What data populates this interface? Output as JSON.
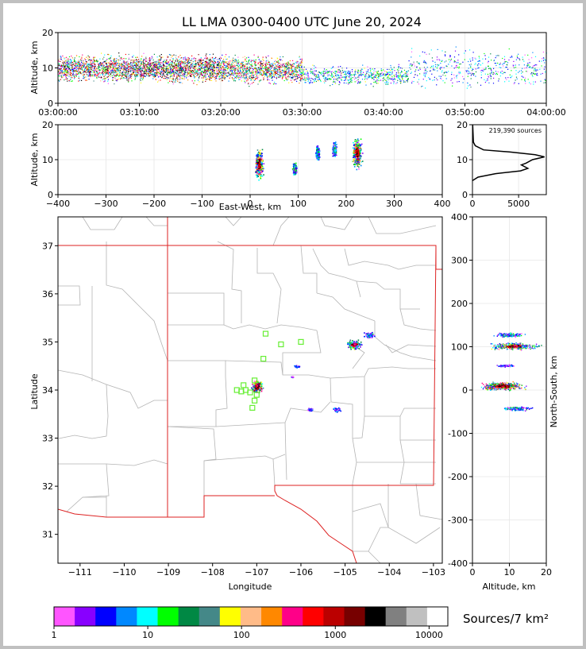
{
  "title": "LL LMA 0300-0400 UTC June 20, 2024",
  "chart_data": [
    {
      "type": "scatter",
      "panel": "time-altitude",
      "xlabel": "",
      "ylabel": "Altitude, km",
      "xticks": [
        "03:00:00",
        "03:10:00",
        "03:20:00",
        "03:30:00",
        "03:40:00",
        "03:50:00",
        "04:00:00"
      ],
      "xlim_minutes": [
        0,
        60
      ],
      "ylim": [
        0,
        20
      ],
      "yticks": [
        0,
        10,
        20
      ],
      "density_bands": [
        {
          "t0": 0,
          "t1": 10,
          "alt_center": 10,
          "alt_spread": 3.5,
          "density": 0.9
        },
        {
          "t0": 10,
          "t1": 20,
          "alt_center": 10,
          "alt_spread": 3.5,
          "density": 1.0
        },
        {
          "t0": 20,
          "t1": 30,
          "alt_center": 9.5,
          "alt_spread": 3.5,
          "density": 0.85
        },
        {
          "t0": 30,
          "t1": 43,
          "alt_center": 8,
          "alt_spread": 2.5,
          "density": 0.45
        },
        {
          "t0": 43,
          "t1": 60,
          "alt_center": 10,
          "alt_spread": 5,
          "density": 0.35
        }
      ]
    },
    {
      "type": "scatter",
      "panel": "east-west-altitude",
      "xlabel": "East-West, km",
      "ylabel": "Altitude, km",
      "xlim": [
        -400,
        400
      ],
      "xticks": [
        -400,
        -300,
        -200,
        -100,
        0,
        100,
        200,
        300,
        400
      ],
      "ylim": [
        0,
        20
      ],
      "yticks": [
        0,
        10,
        20
      ],
      "clusters": [
        {
          "x": 18,
          "alt": 9,
          "dx": 10,
          "dalt": 5,
          "density": 1.0
        },
        {
          "x": 92,
          "alt": 7.5,
          "dx": 5,
          "dalt": 2,
          "density": 0.5
        },
        {
          "x": 140,
          "alt": 12,
          "dx": 5,
          "dalt": 2.5,
          "density": 0.4
        },
        {
          "x": 175,
          "alt": 13,
          "dx": 5,
          "dalt": 2.5,
          "density": 0.45
        },
        {
          "x": 222,
          "alt": 12,
          "dx": 12,
          "dalt": 5,
          "density": 0.85
        }
      ]
    },
    {
      "type": "line",
      "panel": "altitude-histogram",
      "annotation": "219,390 sources",
      "xlim": [
        0,
        8000
      ],
      "xticks": [
        0,
        5000
      ],
      "ylim": [
        0,
        20
      ],
      "yticks": [
        0,
        10,
        20
      ],
      "points": [
        [
          0,
          4
        ],
        [
          600,
          5
        ],
        [
          2500,
          6
        ],
        [
          5200,
          6.8
        ],
        [
          6000,
          7.5
        ],
        [
          5300,
          8.5
        ],
        [
          5800,
          9
        ],
        [
          6500,
          10
        ],
        [
          7800,
          10.8
        ],
        [
          6800,
          11.4
        ],
        [
          4000,
          12.2
        ],
        [
          1200,
          12.8
        ],
        [
          300,
          14
        ],
        [
          100,
          15
        ],
        [
          30,
          20
        ]
      ]
    },
    {
      "type": "scatter",
      "panel": "plan-view",
      "xlabel": "Longitude",
      "ylabel": "Latitude",
      "xlim": [
        -111.5,
        -102.8
      ],
      "xticks": [
        -111,
        -110,
        -109,
        -108,
        -107,
        -106,
        -105,
        -104,
        -103
      ],
      "ylim": [
        30.4,
        37.6
      ],
      "yticks": [
        31,
        32,
        33,
        34,
        35,
        36,
        37
      ],
      "clusters": [
        {
          "lon": -107,
          "lat": 34.08,
          "dlon": 0.15,
          "dlat": 0.15,
          "density": 1.0
        },
        {
          "lon": -104.8,
          "lat": 34.95,
          "dlon": 0.2,
          "dlat": 0.12,
          "density": 0.6
        },
        {
          "lon": -104.45,
          "lat": 35.15,
          "dlon": 0.15,
          "dlat": 0.08,
          "density": 0.3
        },
        {
          "lon": -105.2,
          "lat": 33.6,
          "dlon": 0.1,
          "dlat": 0.06,
          "density": 0.25
        },
        {
          "lon": -105.8,
          "lat": 33.6,
          "dlon": 0.08,
          "dlat": 0.04,
          "density": 0.2
        },
        {
          "lon": -106.1,
          "lat": 34.5,
          "dlon": 0.08,
          "dlat": 0.03,
          "density": 0.2
        },
        {
          "lon": -106.2,
          "lat": 34.28,
          "dlon": 0.03,
          "dlat": 0.02,
          "density": 0.1
        }
      ],
      "stations": [
        [
          -106.8,
          35.17
        ],
        [
          -106.45,
          34.95
        ],
        [
          -106.0,
          35.0
        ],
        [
          -106.85,
          34.65
        ],
        [
          -107.05,
          34.2
        ],
        [
          -107.3,
          34.1
        ],
        [
          -107.45,
          34.0
        ],
        [
          -107.35,
          33.97
        ],
        [
          -107.15,
          33.95
        ],
        [
          -107.0,
          33.9
        ],
        [
          -107.05,
          33.78
        ],
        [
          -107.1,
          33.63
        ],
        [
          -107.25,
          34.0
        ]
      ]
    },
    {
      "type": "scatter",
      "panel": "altitude-north-south",
      "xlabel": "Altitude, km",
      "ylabel": "North-South, km",
      "xlim": [
        0,
        20
      ],
      "xticks": [
        0,
        10,
        20
      ],
      "ylim": [
        -400,
        400
      ],
      "yticks": [
        -400,
        -300,
        -200,
        -100,
        0,
        100,
        200,
        300,
        400
      ],
      "clusters": [
        {
          "alt": 11,
          "ns": 102,
          "dalt": 8,
          "dns": 10,
          "density": 0.7
        },
        {
          "alt": 10,
          "ns": 128,
          "dalt": 5,
          "dns": 6,
          "density": 0.3
        },
        {
          "alt": 8,
          "ns": 10,
          "dalt": 7,
          "dns": 12,
          "density": 1.0
        },
        {
          "alt": 9,
          "ns": 57,
          "dalt": 3,
          "dns": 3,
          "density": 0.2
        },
        {
          "alt": 12,
          "ns": -42,
          "dalt": 5,
          "dns": 6,
          "density": 0.35
        }
      ]
    },
    {
      "type": "colorbar",
      "label": "Sources/7 km²",
      "ticks": [
        "1",
        "10",
        "100",
        "1000",
        "10000"
      ],
      "colors": [
        "#ff55ff",
        "#8800ff",
        "#0000ff",
        "#0088ff",
        "#00ffff",
        "#00ff00",
        "#008844",
        "#448888",
        "#ffff00",
        "#ffbb88",
        "#ff8800",
        "#ff0088",
        "#ff0000",
        "#bb0000",
        "#770000",
        "#000000",
        "#808080",
        "#c0c0c0",
        "#ffffff"
      ]
    }
  ]
}
